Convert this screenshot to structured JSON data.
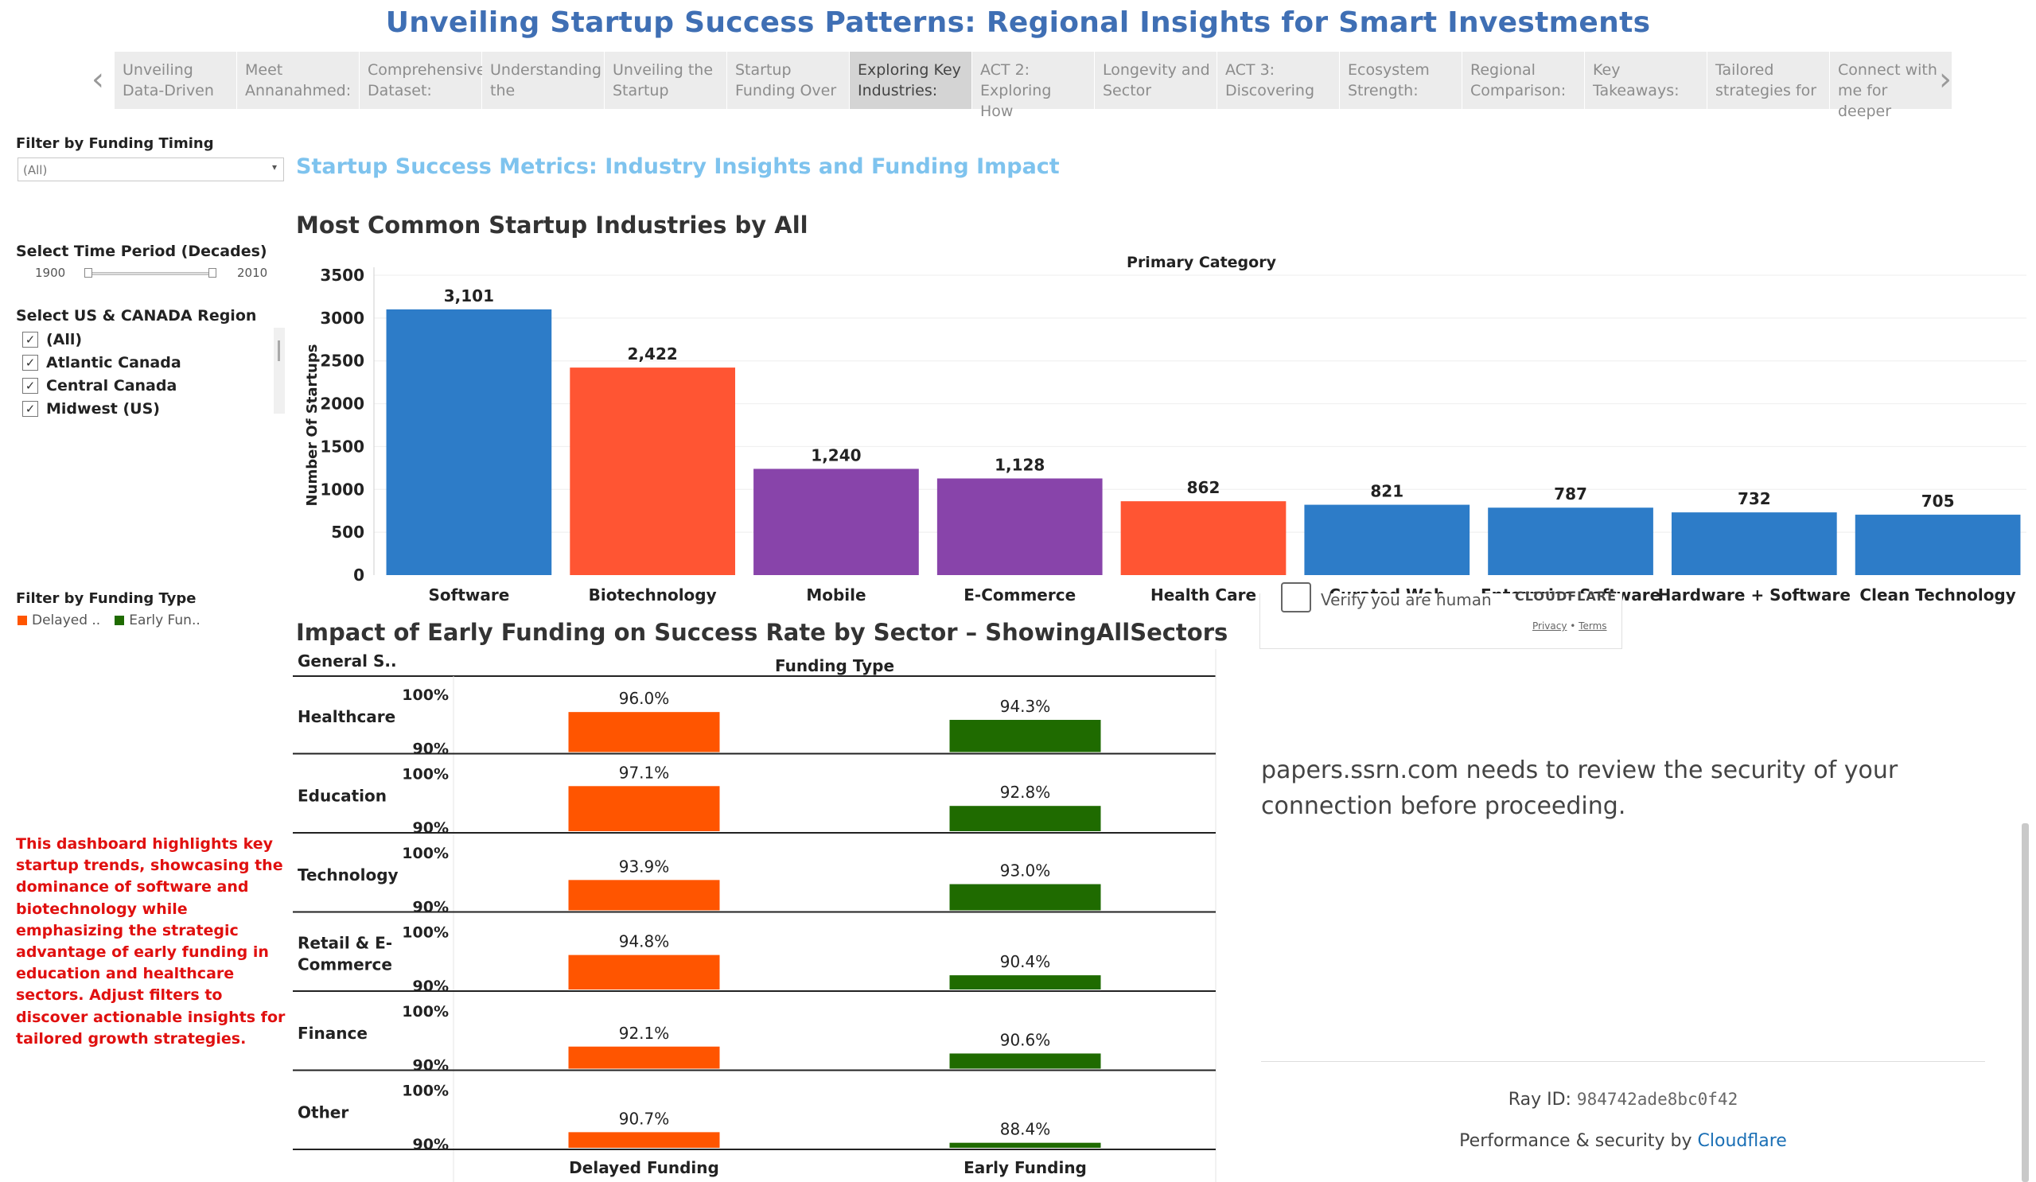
{
  "main_title": "Unveiling Startup Success Patterns: Regional Insights for Smart Investments",
  "story_points": [
    {
      "label": "Unveiling Data-Driven",
      "active": false
    },
    {
      "label": "Meet Annanahmed:",
      "active": false
    },
    {
      "label": "Comprehensive Dataset:",
      "active": false
    },
    {
      "label": "Understanding the",
      "active": false
    },
    {
      "label": "Unveiling the Startup",
      "active": false
    },
    {
      "label": "Startup Funding Over",
      "active": false
    },
    {
      "label": "Exploring Key Industries:",
      "active": true
    },
    {
      "label": "ACT 2: Exploring How",
      "active": false
    },
    {
      "label": "Longevity and Sector",
      "active": false
    },
    {
      "label": "ACT 3: Discovering",
      "active": false
    },
    {
      "label": "Ecosystem Strength:",
      "active": false
    },
    {
      "label": "Regional Comparison:",
      "active": false
    },
    {
      "label": "Key Takeaways:",
      "active": false
    },
    {
      "label": "Tailored strategies for",
      "active": false
    },
    {
      "label": "Connect with me for deeper",
      "active": false
    }
  ],
  "nav": {
    "prev_icon": "chevron-left-icon",
    "next_icon": "chevron-right-icon",
    "prev_glyph": "‹",
    "next_glyph": "›"
  },
  "filters": {
    "funding_timing_label": "Filter by Funding Timing",
    "funding_timing_value": "(All)",
    "time_period_label": "Select Time Period (Decades)",
    "time_min": "1900",
    "time_max": "2010",
    "region_label": "Select US & CANADA Region",
    "regions": [
      {
        "label": "(All)",
        "checked": true
      },
      {
        "label": "Atlantic Canada",
        "checked": true
      },
      {
        "label": "Central Canada",
        "checked": true
      },
      {
        "label": "Midwest (US)",
        "checked": true
      }
    ],
    "funding_type_label": "Filter by Funding Type",
    "funding_type_legend": [
      {
        "label": "Delayed ..",
        "color": "#ff5500"
      },
      {
        "label": "Early Fun..",
        "color": "#1f6b00"
      }
    ]
  },
  "note": "This dashboard highlights key startup trends, showcasing the dominance of software and biotechnology while emphasizing the strategic advantage of early funding in education and healthcare sectors. Adjust filters to discover actionable insights for tailored growth strategies.",
  "subtitle": "Startup Success Metrics: Industry Insights and Funding Impact",
  "chart_data": [
    {
      "type": "bar",
      "title": "Most Common Startup Industries by All",
      "column_header": "Primary Category",
      "ylabel": "Number Of Startups",
      "ylim": [
        0,
        3500
      ],
      "yticks": [
        "0",
        "500",
        "1000",
        "1500",
        "2000",
        "2500",
        "3000",
        "3500"
      ],
      "categories": [
        "Software",
        "Biotechnology",
        "Mobile",
        "E-Commerce",
        "Health Care",
        "Curated Web",
        "Enterprise Software",
        "Hardware + Software",
        "Clean Technology"
      ],
      "values": [
        3101,
        2422,
        1240,
        1128,
        862,
        821,
        787,
        732,
        705
      ],
      "value_labels": [
        "3,101",
        "2,422",
        "1,240",
        "1,128",
        "862",
        "821",
        "787",
        "732",
        "705"
      ],
      "colors": [
        "#2d7cc8",
        "#ff5533",
        "#8844aa",
        "#8844aa",
        "#ff5533",
        "#2d7cc8",
        "#2d7cc8",
        "#2d7cc8",
        "#2d7cc8"
      ],
      "grid": true
    },
    {
      "type": "bar",
      "title": "Impact of Early Funding on Success Rate by Sector – ShowingAllSectors",
      "row_header": "General S..",
      "column_header": "Funding Type",
      "axis_ticks": [
        "100%",
        "90%"
      ],
      "ylim": [
        88,
        100
      ],
      "columns": [
        "Delayed Funding",
        "Early Funding"
      ],
      "column_colors": [
        "#ff5500",
        "#1f6b00"
      ],
      "rows": [
        {
          "sector": "Healthcare",
          "values": [
            96.0,
            94.3
          ],
          "labels": [
            "96.0%",
            "94.3%"
          ]
        },
        {
          "sector": "Education",
          "values": [
            97.1,
            92.8
          ],
          "labels": [
            "97.1%",
            "92.8%"
          ]
        },
        {
          "sector": "Technology",
          "values": [
            93.9,
            93.0
          ],
          "labels": [
            "93.9%",
            "93.0%"
          ]
        },
        {
          "sector": "Retail & E-Commerce",
          "values": [
            94.8,
            90.4
          ],
          "labels": [
            "94.8%",
            "90.4%"
          ]
        },
        {
          "sector": "Finance",
          "values": [
            92.1,
            90.6
          ],
          "labels": [
            "92.1%",
            "90.6%"
          ]
        },
        {
          "sector": "Other",
          "values": [
            90.7,
            88.4
          ],
          "labels": [
            "90.7%",
            "88.4%"
          ]
        }
      ]
    }
  ],
  "cloudflare": {
    "verify_text": "Verify you are human",
    "brand": "CLOUDFLARE",
    "privacy": "Privacy",
    "terms": "Terms",
    "message": "papers.ssrn.com needs to review the security of your connection before proceeding.",
    "ray_label": "Ray ID: ",
    "ray_id": "984742ade8bc0f42",
    "perf_prefix": "Performance & security by ",
    "perf_link": "Cloudflare"
  }
}
